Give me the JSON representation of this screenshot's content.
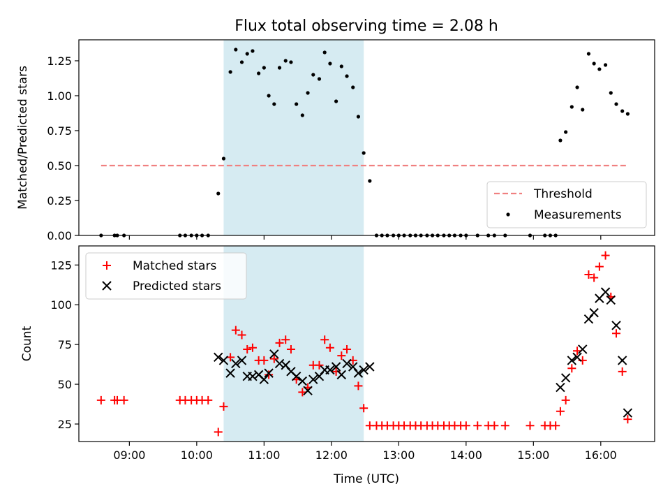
{
  "chart_data": [
    {
      "type": "scatter",
      "title": "Flux total observing time = 2.08 h",
      "ylabel": "Matched/Predicted stars",
      "xlabel": "",
      "x_unit": "hours UTC",
      "xlim": [
        8.25,
        16.8
      ],
      "ylim": [
        0.0,
        1.4
      ],
      "yticks": [
        0.0,
        0.25,
        0.5,
        0.75,
        1.0,
        1.25
      ],
      "ytick_labels": [
        "0.00",
        "0.25",
        "0.50",
        "0.75",
        "1.00",
        "1.25"
      ],
      "highlight_span": [
        10.4,
        12.48
      ],
      "legend": "lower right",
      "threshold": {
        "name": "Threshold",
        "value": 0.5,
        "x": [
          8.58,
          16.4
        ],
        "color": "#f08080"
      },
      "series": [
        {
          "name": "Measurements",
          "color": "#000000",
          "marker": "dot",
          "points": [
            [
              8.58,
              0
            ],
            [
              8.78,
              0
            ],
            [
              8.82,
              0
            ],
            [
              8.92,
              0
            ],
            [
              9.75,
              0
            ],
            [
              9.83,
              0
            ],
            [
              9.92,
              0
            ],
            [
              10.0,
              0
            ],
            [
              10.08,
              0
            ],
            [
              10.17,
              0
            ],
            [
              10.32,
              0.3
            ],
            [
              10.4,
              0.55
            ],
            [
              10.5,
              1.17
            ],
            [
              10.58,
              1.33
            ],
            [
              10.67,
              1.24
            ],
            [
              10.75,
              1.3
            ],
            [
              10.83,
              1.32
            ],
            [
              10.92,
              1.16
            ],
            [
              11.0,
              1.2
            ],
            [
              11.07,
              1.0
            ],
            [
              11.15,
              0.94
            ],
            [
              11.23,
              1.2
            ],
            [
              11.32,
              1.25
            ],
            [
              11.4,
              1.24
            ],
            [
              11.48,
              0.94
            ],
            [
              11.57,
              0.86
            ],
            [
              11.65,
              1.02
            ],
            [
              11.73,
              1.15
            ],
            [
              11.82,
              1.12
            ],
            [
              11.9,
              1.31
            ],
            [
              11.98,
              1.23
            ],
            [
              12.07,
              0.96
            ],
            [
              12.15,
              1.21
            ],
            [
              12.23,
              1.14
            ],
            [
              12.32,
              1.06
            ],
            [
              12.4,
              0.85
            ],
            [
              12.48,
              0.59
            ],
            [
              12.57,
              0.39
            ],
            [
              12.67,
              0
            ],
            [
              12.75,
              0
            ],
            [
              12.83,
              0
            ],
            [
              12.92,
              0
            ],
            [
              13.0,
              0
            ],
            [
              13.08,
              0
            ],
            [
              13.17,
              0
            ],
            [
              13.25,
              0
            ],
            [
              13.33,
              0
            ],
            [
              13.42,
              0
            ],
            [
              13.5,
              0
            ],
            [
              13.58,
              0
            ],
            [
              13.67,
              0
            ],
            [
              13.75,
              0
            ],
            [
              13.83,
              0
            ],
            [
              13.92,
              0
            ],
            [
              14.0,
              0
            ],
            [
              14.17,
              0
            ],
            [
              14.33,
              0
            ],
            [
              14.42,
              0
            ],
            [
              14.58,
              0
            ],
            [
              14.95,
              0
            ],
            [
              15.17,
              0
            ],
            [
              15.25,
              0
            ],
            [
              15.33,
              0
            ],
            [
              15.4,
              0.68
            ],
            [
              15.48,
              0.74
            ],
            [
              15.57,
              0.92
            ],
            [
              15.65,
              1.06
            ],
            [
              15.73,
              0.9
            ],
            [
              15.82,
              1.3
            ],
            [
              15.9,
              1.23
            ],
            [
              15.98,
              1.19
            ],
            [
              16.07,
              1.22
            ],
            [
              16.15,
              1.02
            ],
            [
              16.23,
              0.94
            ],
            [
              16.32,
              0.89
            ],
            [
              16.4,
              0.87
            ]
          ]
        }
      ]
    },
    {
      "type": "scatter",
      "title": "",
      "ylabel": "Count",
      "xlabel": "Time (UTC)",
      "x_unit": "hours UTC",
      "xlim": [
        8.25,
        16.8
      ],
      "ylim": [
        14,
        137
      ],
      "xticks": [
        9,
        10,
        11,
        12,
        13,
        14,
        15,
        16
      ],
      "xtick_labels": [
        "09:00",
        "10:00",
        "11:00",
        "12:00",
        "13:00",
        "14:00",
        "15:00",
        "16:00"
      ],
      "yticks": [
        25,
        50,
        75,
        100,
        125
      ],
      "ytick_labels": [
        "25",
        "50",
        "75",
        "100",
        "125"
      ],
      "highlight_span": [
        10.4,
        12.48
      ],
      "legend": "upper left",
      "series": [
        {
          "name": "Matched stars",
          "color": "#ff0000",
          "marker": "plus",
          "points": [
            [
              8.58,
              40
            ],
            [
              8.78,
              40
            ],
            [
              8.82,
              40
            ],
            [
              8.92,
              40
            ],
            [
              9.75,
              40
            ],
            [
              9.83,
              40
            ],
            [
              9.92,
              40
            ],
            [
              10.0,
              40
            ],
            [
              10.08,
              40
            ],
            [
              10.17,
              40
            ],
            [
              10.32,
              20
            ],
            [
              10.4,
              36
            ],
            [
              10.5,
              67
            ],
            [
              10.58,
              84
            ],
            [
              10.67,
              81
            ],
            [
              10.75,
              72
            ],
            [
              10.83,
              73
            ],
            [
              10.92,
              65
            ],
            [
              11.0,
              65
            ],
            [
              11.07,
              56
            ],
            [
              11.15,
              66
            ],
            [
              11.23,
              76
            ],
            [
              11.32,
              78
            ],
            [
              11.4,
              72
            ],
            [
              11.48,
              53
            ],
            [
              11.57,
              45
            ],
            [
              11.65,
              48
            ],
            [
              11.73,
              62
            ],
            [
              11.82,
              62
            ],
            [
              11.9,
              78
            ],
            [
              11.98,
              73
            ],
            [
              12.07,
              58
            ],
            [
              12.15,
              68
            ],
            [
              12.23,
              72
            ],
            [
              12.32,
              65
            ],
            [
              12.4,
              49
            ],
            [
              12.48,
              35
            ],
            [
              12.57,
              24
            ],
            [
              12.67,
              24
            ],
            [
              12.75,
              24
            ],
            [
              12.83,
              24
            ],
            [
              12.92,
              24
            ],
            [
              13.0,
              24
            ],
            [
              13.08,
              24
            ],
            [
              13.17,
              24
            ],
            [
              13.25,
              24
            ],
            [
              13.33,
              24
            ],
            [
              13.42,
              24
            ],
            [
              13.5,
              24
            ],
            [
              13.58,
              24
            ],
            [
              13.67,
              24
            ],
            [
              13.75,
              24
            ],
            [
              13.83,
              24
            ],
            [
              13.92,
              24
            ],
            [
              14.0,
              24
            ],
            [
              14.17,
              24
            ],
            [
              14.33,
              24
            ],
            [
              14.42,
              24
            ],
            [
              14.58,
              24
            ],
            [
              14.95,
              24
            ],
            [
              15.17,
              24
            ],
            [
              15.25,
              24
            ],
            [
              15.33,
              24
            ],
            [
              15.4,
              33
            ],
            [
              15.48,
              40
            ],
            [
              15.57,
              60
            ],
            [
              15.65,
              71
            ],
            [
              15.73,
              65
            ],
            [
              15.82,
              119
            ],
            [
              15.9,
              117
            ],
            [
              15.98,
              124
            ],
            [
              16.07,
              131
            ],
            [
              16.15,
              105
            ],
            [
              16.23,
              82
            ],
            [
              16.32,
              58
            ],
            [
              16.4,
              28
            ]
          ]
        },
        {
          "name": "Predicted stars",
          "color": "#000000",
          "marker": "x",
          "points": [
            [
              10.32,
              67
            ],
            [
              10.4,
              65
            ],
            [
              10.5,
              57
            ],
            [
              10.58,
              63
            ],
            [
              10.67,
              65
            ],
            [
              10.75,
              55
            ],
            [
              10.83,
              55
            ],
            [
              10.92,
              56
            ],
            [
              11.0,
              53
            ],
            [
              11.07,
              57
            ],
            [
              11.15,
              69
            ],
            [
              11.23,
              63
            ],
            [
              11.32,
              62
            ],
            [
              11.4,
              58
            ],
            [
              11.48,
              55
            ],
            [
              11.57,
              52
            ],
            [
              11.65,
              46
            ],
            [
              11.73,
              53
            ],
            [
              11.82,
              55
            ],
            [
              11.9,
              59
            ],
            [
              11.98,
              59
            ],
            [
              12.07,
              61
            ],
            [
              12.15,
              56
            ],
            [
              12.23,
              63
            ],
            [
              12.32,
              61
            ],
            [
              12.4,
              57
            ],
            [
              12.48,
              59
            ],
            [
              12.57,
              61
            ],
            [
              15.4,
              48
            ],
            [
              15.48,
              54
            ],
            [
              15.57,
              65
            ],
            [
              15.65,
              67
            ],
            [
              15.73,
              72
            ],
            [
              15.82,
              91
            ],
            [
              15.9,
              95
            ],
            [
              15.98,
              104
            ],
            [
              16.07,
              108
            ],
            [
              16.15,
              103
            ],
            [
              16.23,
              87
            ],
            [
              16.32,
              65
            ],
            [
              16.4,
              32
            ]
          ]
        }
      ]
    }
  ]
}
